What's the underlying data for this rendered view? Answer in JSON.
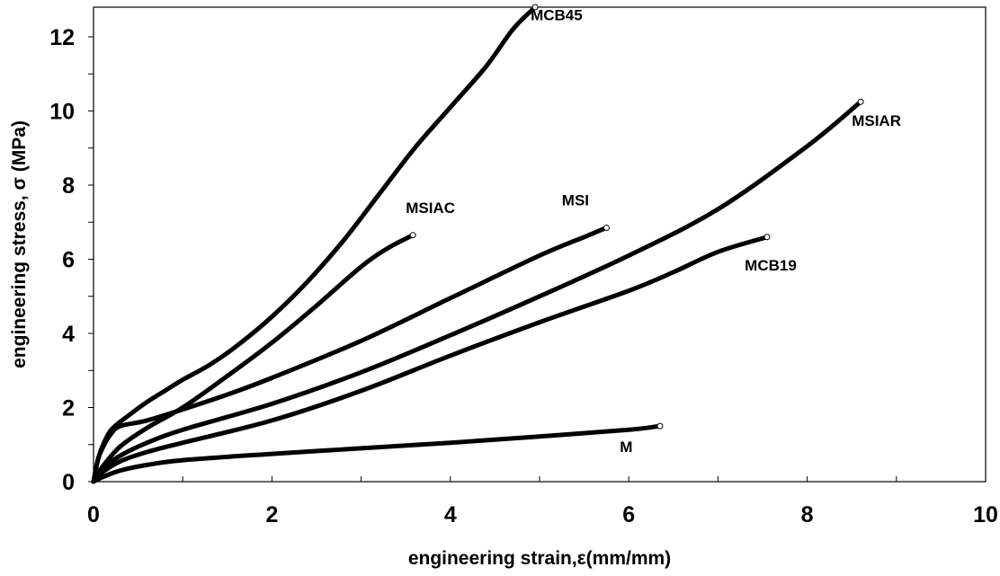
{
  "chart_data": {
    "type": "line",
    "xlabel": "engineering strain,ε(mm/mm)",
    "ylabel": "engineering stress, σ (MPa)",
    "xlim": [
      0,
      10
    ],
    "ylim": [
      0,
      12.8
    ],
    "x_ticks": [
      "0",
      "2",
      "4",
      "6",
      "8",
      "10"
    ],
    "y_ticks": [
      "0",
      "2",
      "4",
      "6",
      "8",
      "10",
      "12"
    ],
    "x_tick_values": [
      0,
      2,
      4,
      6,
      8,
      10
    ],
    "y_tick_values": [
      0,
      2,
      4,
      6,
      8,
      10,
      12
    ],
    "x_minor_step": 1,
    "y_minor_step": 1,
    "grid": false,
    "line_color": "#000000",
    "series": [
      {
        "name": "MCB45",
        "points": [
          [
            0,
            0
          ],
          [
            0.05,
            0.6
          ],
          [
            0.1,
            0.95
          ],
          [
            0.2,
            1.4
          ],
          [
            0.4,
            1.8
          ],
          [
            0.6,
            2.15
          ],
          [
            0.8,
            2.45
          ],
          [
            1.0,
            2.75
          ],
          [
            1.3,
            3.15
          ],
          [
            1.6,
            3.65
          ],
          [
            2.0,
            4.45
          ],
          [
            2.4,
            5.4
          ],
          [
            2.8,
            6.5
          ],
          [
            3.2,
            7.75
          ],
          [
            3.6,
            9.0
          ],
          [
            4.0,
            10.1
          ],
          [
            4.4,
            11.2
          ],
          [
            4.7,
            12.2
          ],
          [
            4.95,
            12.8
          ]
        ]
      },
      {
        "name": "MSIAC",
        "points": [
          [
            0,
            0
          ],
          [
            0.1,
            0.4
          ],
          [
            0.3,
            0.95
          ],
          [
            0.6,
            1.45
          ],
          [
            1.0,
            2.0
          ],
          [
            1.5,
            2.85
          ],
          [
            2.0,
            3.75
          ],
          [
            2.5,
            4.75
          ],
          [
            3.0,
            5.8
          ],
          [
            3.3,
            6.3
          ],
          [
            3.58,
            6.65
          ]
        ]
      },
      {
        "name": "MSI",
        "points": [
          [
            0,
            0
          ],
          [
            0.05,
            0.6
          ],
          [
            0.12,
            1.0
          ],
          [
            0.2,
            1.3
          ],
          [
            0.3,
            1.5
          ],
          [
            0.6,
            1.65
          ],
          [
            1.0,
            1.95
          ],
          [
            1.5,
            2.35
          ],
          [
            2.0,
            2.8
          ],
          [
            3.0,
            3.8
          ],
          [
            4.0,
            4.95
          ],
          [
            5.0,
            6.1
          ],
          [
            5.5,
            6.6
          ],
          [
            5.75,
            6.85
          ]
        ]
      },
      {
        "name": "MSIAR",
        "points": [
          [
            0,
            0
          ],
          [
            0.1,
            0.35
          ],
          [
            0.3,
            0.7
          ],
          [
            0.6,
            1.05
          ],
          [
            1.0,
            1.4
          ],
          [
            2.0,
            2.1
          ],
          [
            3.0,
            2.95
          ],
          [
            4.0,
            3.95
          ],
          [
            5.0,
            5.0
          ],
          [
            6.0,
            6.1
          ],
          [
            7.0,
            7.35
          ],
          [
            8.0,
            9.05
          ],
          [
            8.6,
            10.25
          ]
        ]
      },
      {
        "name": "MCB19",
        "points": [
          [
            0,
            0
          ],
          [
            0.1,
            0.25
          ],
          [
            0.3,
            0.55
          ],
          [
            0.6,
            0.8
          ],
          [
            1.0,
            1.05
          ],
          [
            2.0,
            1.65
          ],
          [
            3.0,
            2.45
          ],
          [
            4.0,
            3.4
          ],
          [
            5.0,
            4.3
          ],
          [
            6.0,
            5.15
          ],
          [
            6.5,
            5.65
          ],
          [
            7.0,
            6.2
          ],
          [
            7.55,
            6.6
          ]
        ]
      },
      {
        "name": "M",
        "points": [
          [
            0,
            0
          ],
          [
            0.1,
            0.12
          ],
          [
            0.3,
            0.3
          ],
          [
            0.6,
            0.45
          ],
          [
            1.0,
            0.58
          ],
          [
            2.0,
            0.75
          ],
          [
            3.0,
            0.9
          ],
          [
            4.0,
            1.05
          ],
          [
            5.0,
            1.22
          ],
          [
            6.0,
            1.4
          ],
          [
            6.35,
            1.5
          ]
        ]
      }
    ],
    "labels": [
      {
        "text": "MCB45",
        "x": 4.9,
        "y": 12.45
      },
      {
        "text": "MSIAC",
        "x": 3.5,
        "y": 7.25
      },
      {
        "text": "MSI",
        "x": 5.25,
        "y": 7.45
      },
      {
        "text": "MSIAR",
        "x": 8.5,
        "y": 9.6
      },
      {
        "text": "MCB19",
        "x": 7.3,
        "y": 5.7
      },
      {
        "text": "M",
        "x": 5.9,
        "y": 0.8
      }
    ]
  }
}
